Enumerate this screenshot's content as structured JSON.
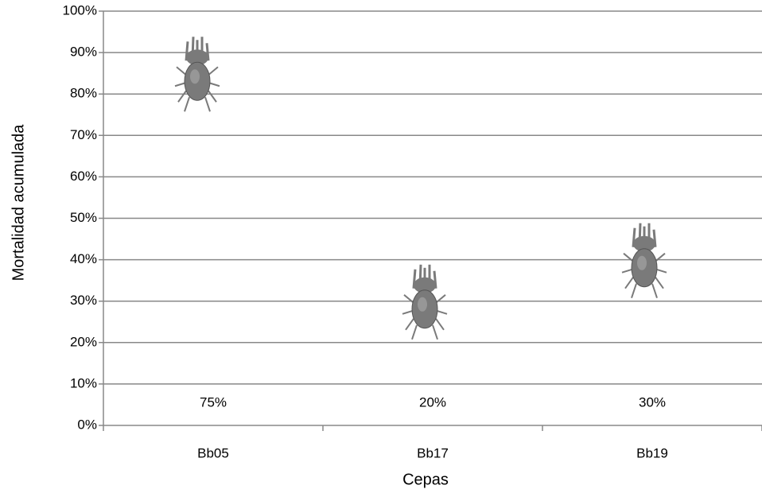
{
  "chart_data": {
    "type": "scatter",
    "x_label": "Cepas",
    "y_label": "Mortalidad acumulada",
    "categories": [
      "Bb05",
      "Bb17",
      "Bb19"
    ],
    "values": [
      75,
      20,
      30
    ],
    "value_labels": [
      "75%",
      "20%",
      "30%"
    ],
    "color": "#7a7a7a",
    "ylim": [
      0,
      100
    ],
    "yticks": [
      {
        "value": 0,
        "label": "0%"
      },
      {
        "value": 10,
        "label": "10%"
      },
      {
        "value": 20,
        "label": "20%"
      },
      {
        "value": 30,
        "label": "30%"
      },
      {
        "value": 40,
        "label": "40%"
      },
      {
        "value": 50,
        "label": "50%"
      },
      {
        "value": 60,
        "label": "60%"
      },
      {
        "value": 70,
        "label": "70%"
      },
      {
        "value": 80,
        "label": "80%"
      },
      {
        "value": 90,
        "label": "90%"
      },
      {
        "value": 100,
        "label": "100%"
      }
    ],
    "grid": true
  }
}
